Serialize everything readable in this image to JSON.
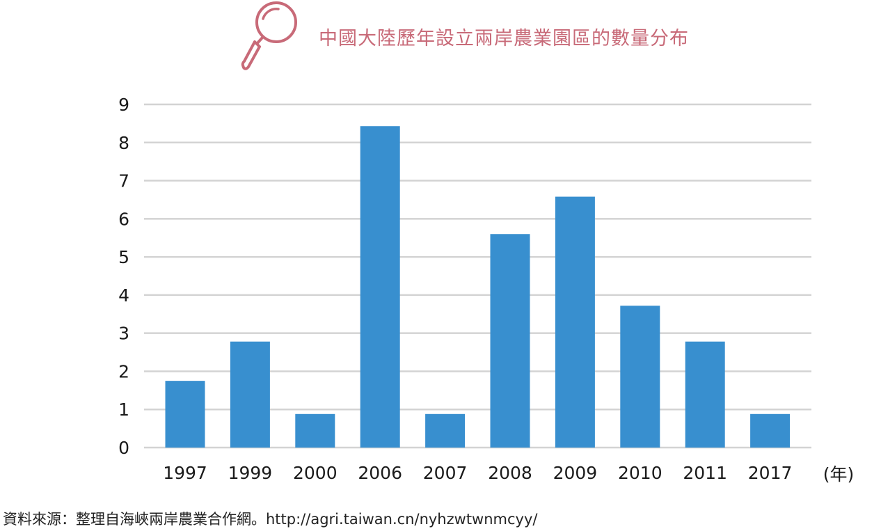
{
  "title": "中國大陸歷年設立兩岸農業園區的數量分布",
  "icon": "magnifier-icon",
  "source": "資料來源：整理自海峽兩岸農業合作網。http://agri.taiwan.cn/nyhzwtwnmcyy/",
  "chart_data": {
    "type": "bar",
    "title": "中國大陸歷年設立兩岸農業園區的數量分布",
    "xlabel": "(年)",
    "ylabel": "",
    "categories": [
      "1997",
      "1999",
      "2000",
      "2006",
      "2007",
      "2008",
      "2009",
      "2010",
      "2011",
      "2017"
    ],
    "values": [
      1.75,
      2.78,
      0.88,
      8.43,
      0.88,
      5.6,
      6.58,
      3.72,
      2.78,
      0.88
    ],
    "ylim": [
      0,
      9
    ],
    "yticks": [
      "0",
      "1",
      "2",
      "3",
      "4",
      "5",
      "6",
      "7",
      "8",
      "9"
    ],
    "grid": true,
    "legend": "none",
    "colors": {
      "bar": "#388fcf",
      "grid": "#d3d3d3",
      "title": "#c86a78"
    }
  }
}
